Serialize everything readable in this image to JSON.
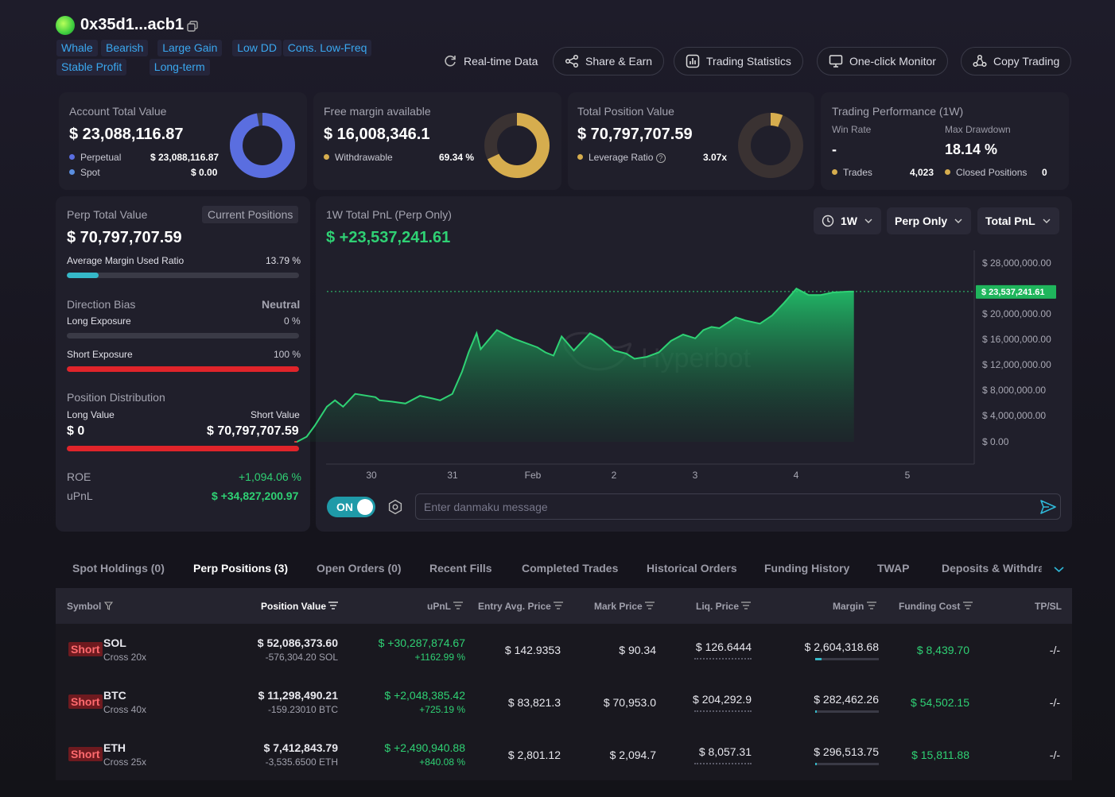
{
  "header": {
    "address": "0x35d1...acb1",
    "tags_row1": [
      "Whale",
      "Bearish",
      "Large Gain",
      "Low DD",
      "Cons. Low-Freq"
    ],
    "tags_row2": [
      "Stable Profit",
      "Long-term"
    ],
    "buttons": {
      "realtime": "Real-time Data",
      "share": "Share & Earn",
      "stats": "Trading Statistics",
      "monitor": "One-click Monitor",
      "copy": "Copy Trading"
    }
  },
  "cards": {
    "account": {
      "title": "Account Total Value",
      "value": "$ 23,088,116.87",
      "perp_label": "Perpetual",
      "perp_value": "$ 23,088,116.87",
      "spot_label": "Spot",
      "spot_value": "$ 0.00",
      "donut_fraction": 1.0,
      "color": "#5a6ee0"
    },
    "margin": {
      "title": "Free margin available",
      "value": "$ 16,008,346.1",
      "withdraw_label": "Withdrawable",
      "withdraw_value": "69.34 %",
      "donut_fraction": 0.6934,
      "color": "#d6ad4e"
    },
    "position": {
      "title": "Total Position Value",
      "value": "$ 70,797,707.59",
      "lev_label": "Leverage Ratio",
      "lev_value": "3.07x",
      "donut_fraction": 0.07,
      "color": "#d6ad4e"
    },
    "performance": {
      "title": "Trading Performance (1W)",
      "winrate_label": "Win Rate",
      "winrate_value": "-",
      "dd_label": "Max Drawdown",
      "dd_value": "18.14 %",
      "trades_label": "Trades",
      "trades_value": "4,023",
      "closed_label": "Closed Positions",
      "closed_value": "0"
    }
  },
  "left_panel": {
    "perp_title": "Perp Total Value",
    "current_btn": "Current Positions",
    "perp_value": "$ 70,797,707.59",
    "amr_label": "Average Margin Used Ratio",
    "amr_value": "13.79 %",
    "amr_fraction": 0.1379,
    "bias_label": "Direction Bias",
    "bias_value": "Neutral",
    "long_exp_label": "Long Exposure",
    "long_exp_value": "0 %",
    "short_exp_label": "Short Exposure",
    "short_exp_value": "100 %",
    "short_fraction": 1.0,
    "dist_label": "Position Distribution",
    "long_val_label": "Long Value",
    "short_val_label": "Short Value",
    "long_val": "$ 0",
    "short_val": "$ 70,797,707.59",
    "roe_label": "ROE",
    "roe_value": "+1,094.06 %",
    "upnl_label": "uPnL",
    "upnl_value": "$ +34,827,200.97"
  },
  "chart_panel": {
    "title": "1W Total PnL (Perp Only)",
    "value": "$ +23,537,241.61",
    "dd_period": "1W",
    "dd_scope": "Perp Only",
    "dd_metric": "Total PnL",
    "watermark": "Hyperbot",
    "toggle": "ON",
    "danmaku_placeholder": "Enter danmaku message"
  },
  "chart_data": {
    "type": "area",
    "title": "1W Total PnL (Perp Only)",
    "x_ticks": [
      "30",
      "31",
      "Feb",
      "2",
      "3",
      "4",
      "5"
    ],
    "y_ticks": [
      "$ 28,000,000.00",
      "$ 20,000,000.00",
      "$ 16,000,000.00",
      "$ 12,000,000.00",
      "$ 8,000,000.00",
      "$ 4,000,000.00",
      "$ 0.00"
    ],
    "ylim": [
      0,
      28000000
    ],
    "current_label": "$ 23,537,241.61",
    "current_value": 23537241.61,
    "color": "#2fd174",
    "x_days": [
      -0.95,
      -0.92,
      -0.8,
      -0.7,
      -0.55,
      -0.45,
      -0.35,
      -0.2,
      0.05,
      0.1,
      0.25,
      0.42,
      0.6,
      0.75,
      0.85,
      1.0,
      1.12,
      1.2,
      1.3,
      1.35,
      1.45,
      1.55,
      1.75,
      2.05,
      2.15,
      2.25,
      2.35,
      2.5,
      2.7,
      2.85,
      3.0,
      3.15,
      3.25,
      3.4,
      3.55,
      3.7,
      3.85,
      4.0,
      4.1,
      4.2,
      4.3,
      4.5,
      4.62,
      4.8,
      4.95,
      5.1,
      5.25,
      5.4,
      5.55,
      5.7,
      5.9,
      5.96
    ],
    "y_values": [
      0,
      0,
      800000,
      2500000,
      5500000,
      6500000,
      5500000,
      7500000,
      7000000,
      6500000,
      6300000,
      6000000,
      7200000,
      6800000,
      6500000,
      7500000,
      11000000,
      14000000,
      17000000,
      14500000,
      16000000,
      17500000,
      16200000,
      14800000,
      14000000,
      13500000,
      16500000,
      14300000,
      17000000,
      16000000,
      14300000,
      13800000,
      13000000,
      13300000,
      14000000,
      15800000,
      16800000,
      16200000,
      17500000,
      18000000,
      17800000,
      19500000,
      19000000,
      18500000,
      19800000,
      21800000,
      24000000,
      23000000,
      23000000,
      23400000,
      23537241,
      23537241
    ]
  },
  "tabs": [
    "Spot Holdings (0)",
    "Perp Positions (3)",
    "Open Orders (0)",
    "Recent Fills",
    "Completed Trades",
    "Historical Orders",
    "Funding History",
    "TWAP",
    "Deposits & Withdraw"
  ],
  "table": {
    "headers": [
      "Symbol",
      "Position Value",
      "uPnL",
      "Entry Avg. Price",
      "Mark Price",
      "Liq. Price",
      "Margin",
      "Funding Cost",
      "TP/SL"
    ],
    "rows": [
      {
        "side": "Short",
        "symbol": "SOL",
        "mode": "Cross 20x",
        "value": "$ 52,086,373.60",
        "size": "-576,304.20 SOL",
        "upnl": "$ +30,287,874.67",
        "upnl_pct": "+1162.99 %",
        "entry": "$ 142.9353",
        "mark": "$ 90.34",
        "liq": "$ 126.6444",
        "margin": "$ 2,604,318.68",
        "margin_fraction": 0.1,
        "funding": "$ 8,439.70",
        "tpsl": "-/-"
      },
      {
        "side": "Short",
        "symbol": "BTC",
        "mode": "Cross 40x",
        "value": "$ 11,298,490.21",
        "size": "-159.23010 BTC",
        "upnl": "$ +2,048,385.42",
        "upnl_pct": "+725.19 %",
        "entry": "$ 83,821.3",
        "mark": "$ 70,953.0",
        "liq": "$ 204,292.9",
        "margin": "$ 282,462.26",
        "margin_fraction": 0.02,
        "funding": "$ 54,502.15",
        "tpsl": "-/-"
      },
      {
        "side": "Short",
        "symbol": "ETH",
        "mode": "Cross 25x",
        "value": "$ 7,412,843.79",
        "size": "-3,535.6500 ETH",
        "upnl": "$ +2,490,940.88",
        "upnl_pct": "+840.08 %",
        "entry": "$ 2,801.12",
        "mark": "$ 2,094.7",
        "liq": "$ 8,057.31",
        "margin": "$ 296,513.75",
        "margin_fraction": 0.02,
        "funding": "$ 15,811.88",
        "tpsl": "-/-"
      }
    ]
  }
}
